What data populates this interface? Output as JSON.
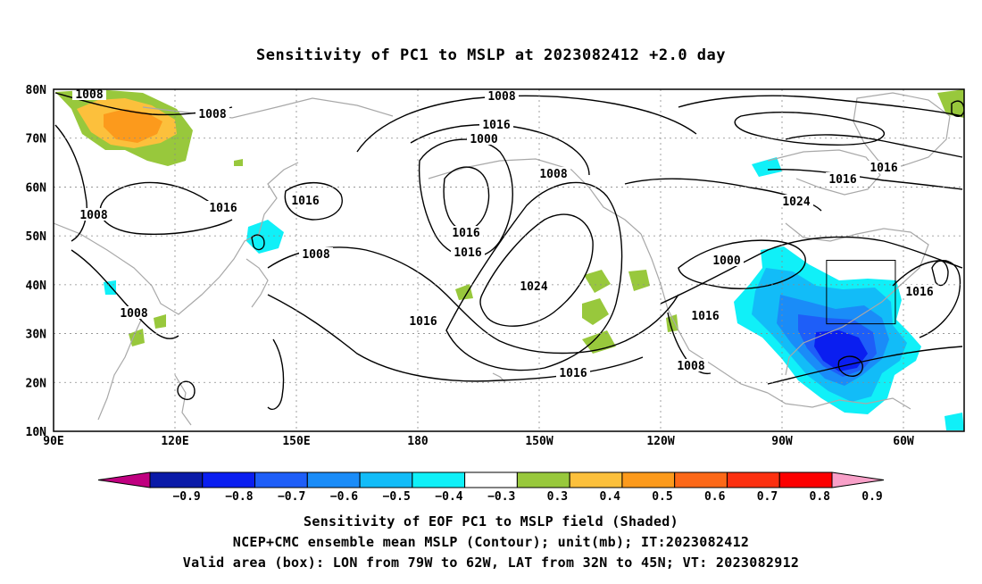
{
  "title": "Sensitivity of PC1 to MSLP at 2023082412 +2.0 day",
  "chart_data": {
    "type": "heatmap",
    "projection": "cylindrical equidistant",
    "lon_range": [
      90,
      315
    ],
    "lat_range": [
      10,
      80
    ],
    "lon_ticks": [
      "90E",
      "120E",
      "150E",
      "180",
      "150W",
      "120W",
      "90W",
      "60W"
    ],
    "lat_ticks": [
      "10N",
      "20N",
      "30N",
      "40N",
      "50N",
      "60N",
      "70N",
      "80N"
    ],
    "grid": true,
    "shaded_field": "Sensitivity of EOF PC1 to MSLP field",
    "contour_field": "NCEP+CMC ensemble mean MSLP",
    "contour_unit": "mb",
    "contour_labels": [
      "1008",
      "1008",
      "1008",
      "1008",
      "1016",
      "1016",
      "1008",
      "1016",
      "1016",
      "1016",
      "1008",
      "1016",
      "1000",
      "1008",
      "1024",
      "1016",
      "1016",
      "1000",
      "1008",
      "1016",
      "1024",
      "1016",
      "1016",
      "1008"
    ],
    "valid_box": {
      "lon": [
        -79,
        -62
      ],
      "lat": [
        32,
        45
      ]
    },
    "colorbar": {
      "labels": [
        "-0.9",
        "-0.8",
        "-0.7",
        "-0.6",
        "-0.5",
        "-0.4",
        "-0.3",
        "0.3",
        "0.4",
        "0.5",
        "0.6",
        "0.7",
        "0.8",
        "0.9"
      ],
      "colors": [
        "#c00080",
        "#0a1aa8",
        "#0a1ef0",
        "#1e5ef8",
        "#1a8cf8",
        "#12bcf8",
        "#10f0f8",
        "#ffffff",
        "#98c83c",
        "#fcc03c",
        "#fc9a1c",
        "#fc6818",
        "#fc3010",
        "#fc0000",
        "#f8a0c8"
      ]
    }
  },
  "footer": {
    "line1": "Sensitivity of EOF PC1 to MSLP field (Shaded)",
    "line2": "NCEP+CMC ensemble mean MSLP (Contour); unit(mb); IT:2023082412",
    "line3": "Valid area (box): LON from 79W to 62W, LAT from 32N to 45N; VT: 2023082912"
  }
}
